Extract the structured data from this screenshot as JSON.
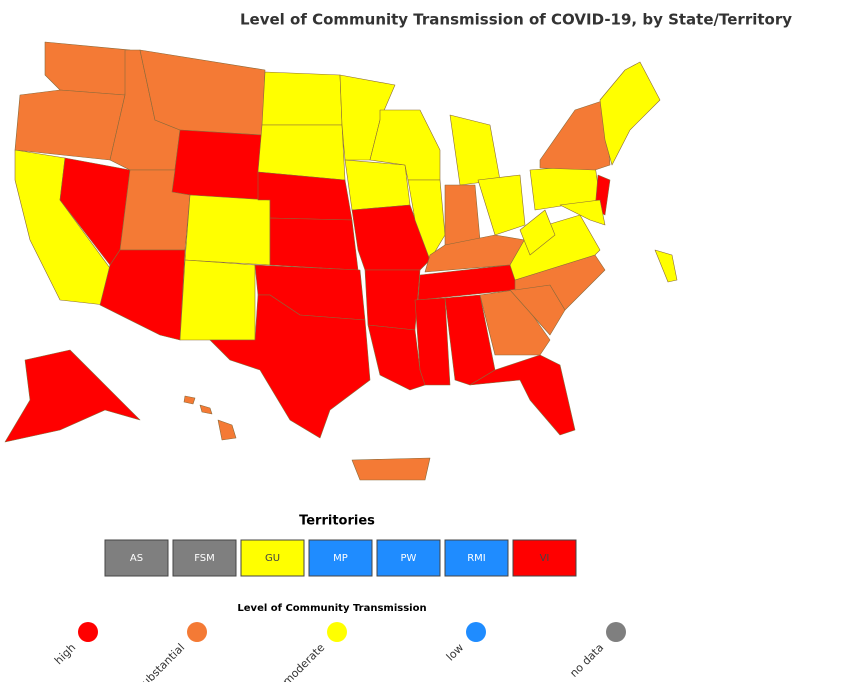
{
  "title": "Level of Community Transmission of COVID-19, by State/Territory",
  "territories": {
    "title": "Territories",
    "items": [
      {
        "label": "AS",
        "color": "#7f7f7f"
      },
      {
        "label": "FSM",
        "color": "#7f7f7f"
      },
      {
        "label": "GU",
        "color": "#ffff00"
      },
      {
        "label": "MP",
        "color": "#1f8cff"
      },
      {
        "label": "PW",
        "color": "#1f8cff"
      },
      {
        "label": "RMI",
        "color": "#1f8cff"
      },
      {
        "label": "VI",
        "color": "#ff0000"
      }
    ]
  },
  "legend": {
    "title": "Level of Community Transmission",
    "items": [
      {
        "label": "high",
        "color": "#ff0000"
      },
      {
        "label": "substantial",
        "color": "#f47a35"
      },
      {
        "label": "moderate",
        "color": "#ffff00"
      },
      {
        "label": "low",
        "color": "#1f8cff"
      },
      {
        "label": "no data",
        "color": "#7f7f7f"
      }
    ]
  }
}
